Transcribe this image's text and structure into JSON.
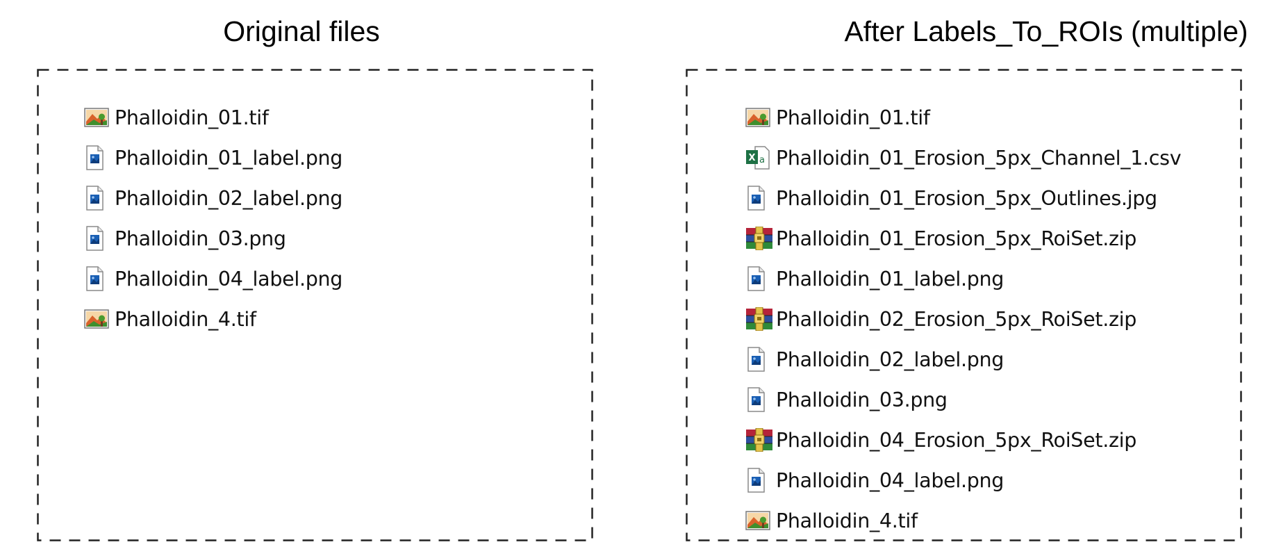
{
  "panels": [
    {
      "title": "Original files",
      "files": [
        {
          "name": "Phalloidin_01.tif",
          "icon": "tif-image-icon"
        },
        {
          "name": "Phalloidin_01_label.png",
          "icon": "png-image-icon"
        },
        {
          "name": "Phalloidin_02_label.png",
          "icon": "png-image-icon"
        },
        {
          "name": "Phalloidin_03.png",
          "icon": "png-image-icon"
        },
        {
          "name": "Phalloidin_04_label.png",
          "icon": "png-image-icon"
        },
        {
          "name": "Phalloidin_4.tif",
          "icon": "tif-image-icon"
        }
      ]
    },
    {
      "title": "After Labels_To_ROIs (multiple)",
      "files": [
        {
          "name": "Phalloidin_01.tif",
          "icon": "tif-image-icon"
        },
        {
          "name": "Phalloidin_01_Erosion_5px_Channel_1.csv",
          "icon": "excel-csv-icon"
        },
        {
          "name": "Phalloidin_01_Erosion_5px_Outlines.jpg",
          "icon": "png-image-icon"
        },
        {
          "name": "Phalloidin_01_Erosion_5px_RoiSet.zip",
          "icon": "zip-archive-icon"
        },
        {
          "name": "Phalloidin_01_label.png",
          "icon": "png-image-icon"
        },
        {
          "name": "Phalloidin_02_Erosion_5px_RoiSet.zip",
          "icon": "zip-archive-icon"
        },
        {
          "name": "Phalloidin_02_label.png",
          "icon": "png-image-icon"
        },
        {
          "name": "Phalloidin_03.png",
          "icon": "png-image-icon"
        },
        {
          "name": "Phalloidin_04_Erosion_5px_RoiSet.zip",
          "icon": "zip-archive-icon"
        },
        {
          "name": "Phalloidin_04_label.png",
          "icon": "png-image-icon"
        },
        {
          "name": "Phalloidin_4.tif",
          "icon": "tif-image-icon"
        }
      ]
    }
  ],
  "colors": {
    "border": "#222222",
    "excel_green": "#1e7145",
    "winrar_red": "#b5243a",
    "winrar_blue": "#2d4f9e",
    "winrar_green": "#2f8a3a",
    "image_blue": "#1a5fb4"
  }
}
